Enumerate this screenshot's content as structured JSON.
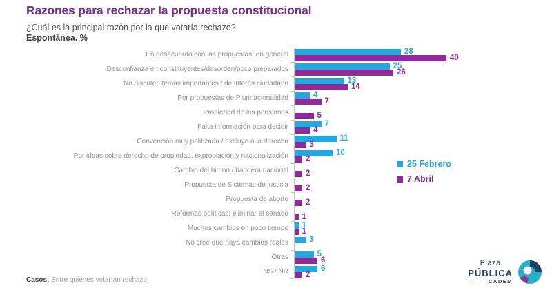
{
  "header": {
    "title": "Razones para rechazar la propuesta constitucional",
    "question": "¿Cuál es la principal razón por la que votaría rechazo?",
    "note": "Espontánea. %"
  },
  "chart_data": {
    "type": "bar",
    "orientation": "horizontal",
    "value_unit": "%",
    "xlim": [
      0,
      42
    ],
    "grid": false,
    "legend_position": "right",
    "series": [
      {
        "name": "25 Febrero",
        "color": "#25A8DD"
      },
      {
        "name": "7 Abril",
        "color": "#8E2A9B"
      }
    ],
    "rows": [
      {
        "label": "En desacuerdo con las propuestas, en general",
        "values": [
          28,
          40
        ]
      },
      {
        "label": "Desconfianza en constituyentes/desorden/poco preparados",
        "values": [
          25,
          26
        ]
      },
      {
        "label": "No discuten temas importantes / de interés ciudadano",
        "values": [
          13,
          14
        ]
      },
      {
        "label": "Por propuestas de Plurinacionalidad",
        "values": [
          4,
          7
        ]
      },
      {
        "label": "Propiedad de las pensiones",
        "values": [
          null,
          5
        ]
      },
      {
        "label": "Falta información para decidir",
        "values": [
          7,
          4
        ]
      },
      {
        "label": "Convención muy politizada / excluye a la derecha",
        "values": [
          11,
          3
        ]
      },
      {
        "label": "Por ideas sobre derecho de propiedad, expropiación y nacionalización",
        "values": [
          10,
          2
        ]
      },
      {
        "label": "Cambio del himno / bandera nacional",
        "values": [
          null,
          2
        ]
      },
      {
        "label": "Propuesta de Sistemas de justicia",
        "values": [
          null,
          2
        ]
      },
      {
        "label": "Propuesta de aborto",
        "values": [
          null,
          2
        ]
      },
      {
        "label": "Reformas políticas: eliminar el senado",
        "values": [
          null,
          1
        ]
      },
      {
        "label": "Muchos cambios en poco tiempo",
        "values": [
          1,
          1
        ]
      },
      {
        "label": "No cree que haya cambios reales",
        "values": [
          3,
          null
        ]
      },
      {
        "label": "Otras",
        "values": [
          5,
          6
        ]
      },
      {
        "label": "NS / NR",
        "values": [
          6,
          2
        ]
      }
    ]
  },
  "footer": {
    "label": "Casos:",
    "text": "Entre quienes votarían rechazo."
  },
  "logo": {
    "line1": "Plaza",
    "line2": "PÚBLICA",
    "line3": "CADEM"
  },
  "colors": {
    "series_feb": "#25A8DD",
    "series_abr": "#8E2A9B",
    "title": "#772C8F",
    "axis": "#C3C3CA",
    "label_gray": "#8F8F99",
    "logo_navy": "#24426B",
    "logo_teal": "#28B0C8",
    "logo_dark": "#1C3F66",
    "logo_purple": "#7E3F98"
  }
}
